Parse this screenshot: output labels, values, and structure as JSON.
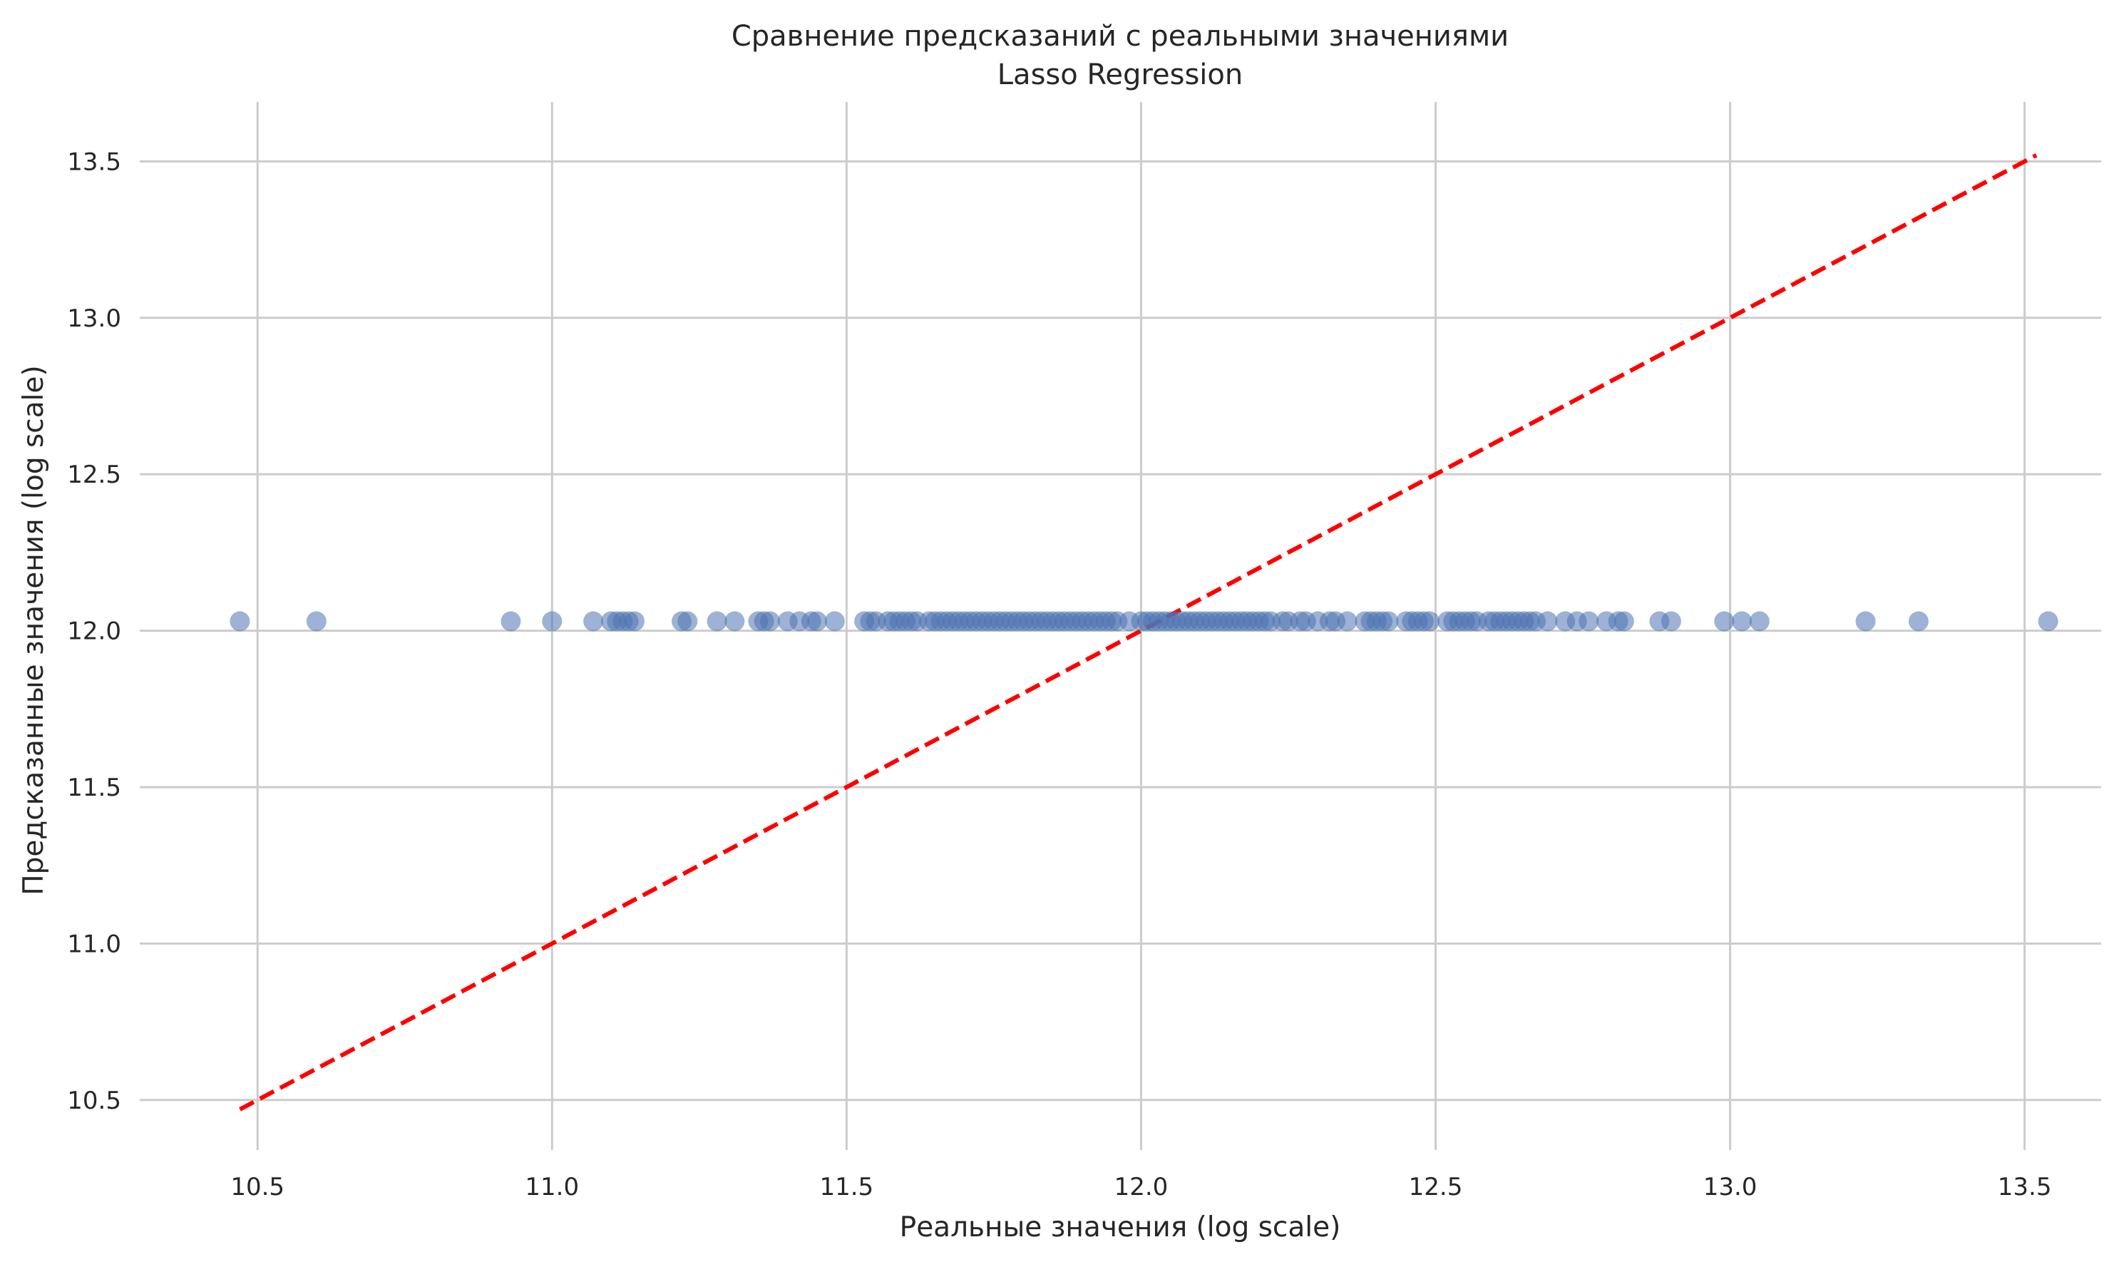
{
  "chart_data": {
    "type": "scatter",
    "title": "Сравнение предсказаний с реальными значениями",
    "subtitle": "Lasso Regression",
    "xlabel": "Реальные значения (log scale)",
    "ylabel": "Предсказанные значения (log scale)",
    "xlim": [
      10.3,
      13.63
    ],
    "ylim": [
      10.34,
      13.69
    ],
    "xticks": [
      10.5,
      11.0,
      11.5,
      12.0,
      12.5,
      13.0,
      13.5
    ],
    "yticks": [
      10.5,
      11.0,
      11.5,
      12.0,
      12.5,
      13.0,
      13.5
    ],
    "xtick_labels": [
      "10.5",
      "11.0",
      "11.5",
      "12.0",
      "12.5",
      "13.0",
      "13.5"
    ],
    "ytick_labels": [
      "10.5",
      "11.0",
      "11.5",
      "12.0",
      "12.5",
      "13.0",
      "13.5"
    ],
    "grid": true,
    "colors": {
      "points": "#4c72b0",
      "reference_line": "#ff0000",
      "grid": "#cccccc",
      "text": "#262626"
    },
    "series": [
      {
        "kind": "scatter",
        "y_constant": 12.03,
        "x": [
          10.47,
          10.6,
          10.93,
          11.0,
          11.07,
          11.1,
          11.11,
          11.12,
          11.13,
          11.14,
          11.22,
          11.23,
          11.28,
          11.31,
          11.35,
          11.36,
          11.37,
          11.4,
          11.42,
          11.44,
          11.45,
          11.48,
          11.53,
          11.54,
          11.55,
          11.57,
          11.58,
          11.59,
          11.6,
          11.61,
          11.62,
          11.64,
          11.65,
          11.66,
          11.67,
          11.68,
          11.69,
          11.7,
          11.71,
          11.72,
          11.73,
          11.74,
          11.75,
          11.76,
          11.77,
          11.78,
          11.79,
          11.8,
          11.81,
          11.82,
          11.83,
          11.84,
          11.85,
          11.86,
          11.87,
          11.88,
          11.89,
          11.9,
          11.91,
          11.92,
          11.93,
          11.94,
          11.95,
          11.96,
          11.98,
          12.0,
          12.01,
          12.02,
          12.03,
          12.04,
          12.05,
          12.06,
          12.07,
          12.08,
          12.09,
          12.1,
          12.11,
          12.12,
          12.13,
          12.14,
          12.15,
          12.16,
          12.17,
          12.18,
          12.19,
          12.2,
          12.21,
          12.22,
          12.24,
          12.25,
          12.27,
          12.28,
          12.3,
          12.32,
          12.33,
          12.35,
          12.38,
          12.39,
          12.4,
          12.41,
          12.42,
          12.45,
          12.46,
          12.47,
          12.48,
          12.49,
          12.52,
          12.53,
          12.54,
          12.55,
          12.56,
          12.57,
          12.59,
          12.6,
          12.61,
          12.62,
          12.63,
          12.64,
          12.65,
          12.66,
          12.67,
          12.69,
          12.72,
          12.74,
          12.76,
          12.79,
          12.81,
          12.82,
          12.88,
          12.9,
          12.99,
          13.02,
          13.05,
          13.23,
          13.32,
          13.54
        ]
      },
      {
        "kind": "line",
        "x": [
          10.47,
          13.52
        ],
        "y": [
          10.47,
          13.52
        ]
      }
    ]
  }
}
